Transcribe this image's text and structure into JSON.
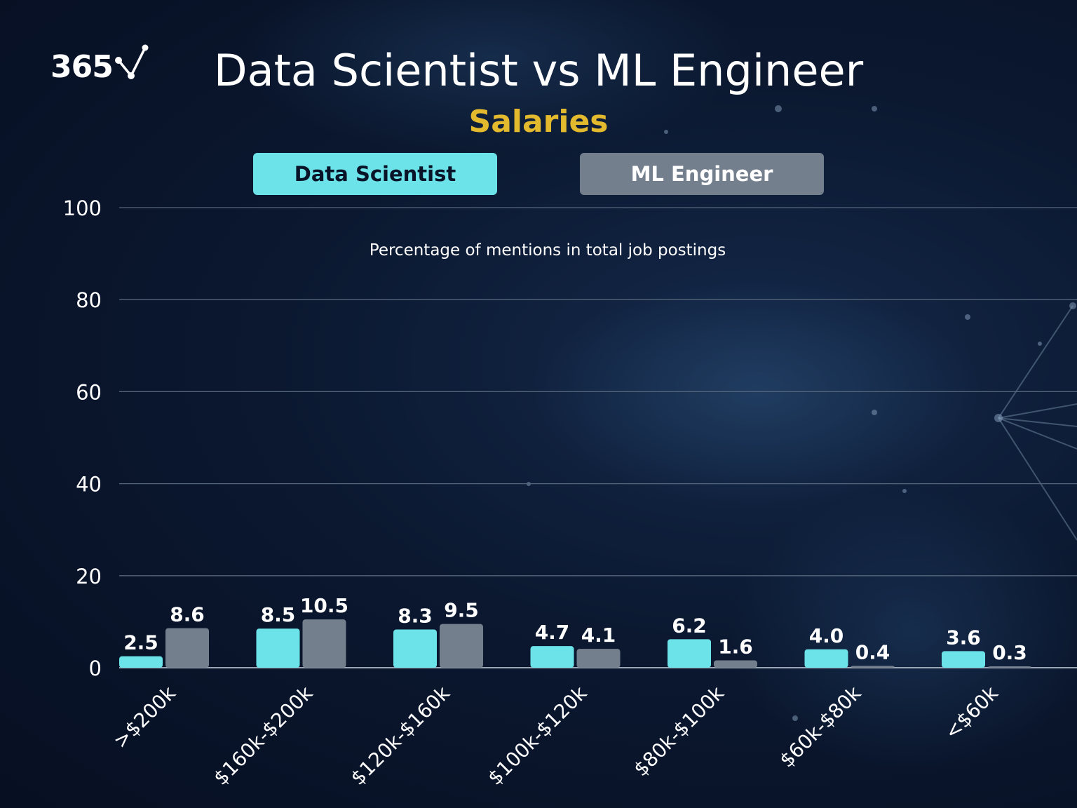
{
  "logo": {
    "text": "365",
    "icon": "checkmark-network-icon"
  },
  "header": {
    "title": "Data Scientist vs ML Engineer",
    "subtitle": "Salaries"
  },
  "legend": {
    "data_scientist": "Data Scientist",
    "ml_engineer": "ML Engineer"
  },
  "colors": {
    "data_scientist": "#6be3e8",
    "ml_engineer": "#747f8e",
    "subtitle": "#e3b92e",
    "background": "#0b1830"
  },
  "chart_data": {
    "type": "bar",
    "title": "Data Scientist vs ML Engineer",
    "subtitle": "Salaries",
    "annotation": "Percentage of mentions in total job postings",
    "categories": [
      ">$200k",
      "$160k-$200k",
      "$120k-$160k",
      "$100k-$120k",
      "$80k-$100k",
      "$60k-$80k",
      "<$60k"
    ],
    "series": [
      {
        "name": "Data Scientist",
        "values": [
          2.5,
          8.5,
          8.3,
          4.7,
          6.2,
          4.0,
          3.6
        ],
        "labels": [
          "2.5",
          "8.5",
          "8.3",
          "4.7",
          "6.2",
          "4.0",
          "3.6"
        ]
      },
      {
        "name": "ML Engineer",
        "values": [
          8.6,
          10.5,
          9.5,
          4.1,
          1.6,
          0.4,
          0.3
        ],
        "labels": [
          "8.6",
          "10.5",
          "9.5",
          "4.1",
          "1.6",
          "0.4",
          "0.3"
        ]
      }
    ],
    "ylim": [
      0,
      100
    ],
    "yticks": [
      0,
      20,
      40,
      60,
      80,
      100
    ],
    "grid": true,
    "legend_position": "top"
  }
}
